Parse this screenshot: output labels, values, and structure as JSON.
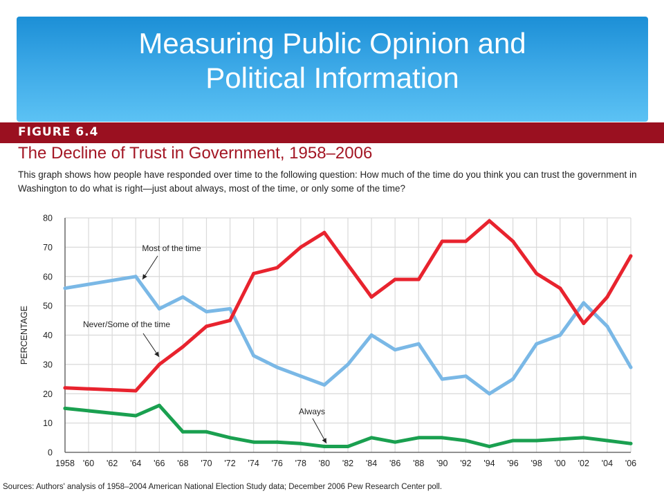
{
  "slide": {
    "title_line1": "Measuring Public Opinion and",
    "title_line2": "Political Information"
  },
  "figure": {
    "label": "FIGURE 6.4",
    "title": "The Decline of Trust in Government, 1958–2006",
    "description": "This graph shows how people have responded over time to the following question: How much of the time do you think you can trust the government in Washington to do what is right—just about always, most of the time, or only some of the time?",
    "source": "Sources: Authors' analysis of 1958–2004 American National Election Study data; December 2006 Pew Research Center poll."
  },
  "colors": {
    "banner_top": "#1c8fd6",
    "banner_bottom": "#5cc2f4",
    "figure_bar": "#9a1020",
    "figure_title": "#a31624",
    "most": "#7ab8e6",
    "never_some": "#e8232e",
    "always": "#1aa050",
    "grid": "#d9d9d9"
  },
  "chart_data": {
    "type": "line",
    "categories": [
      "1958",
      "'60",
      "'62",
      "'64",
      "'66",
      "'68",
      "'70",
      "'72",
      "'74",
      "'76",
      "'78",
      "'80",
      "'82",
      "'84",
      "'86",
      "'88",
      "'90",
      "'92",
      "'94",
      "'96",
      "'98",
      "'00",
      "'02",
      "'04",
      "'06"
    ],
    "ylabel": "PERCENTAGE",
    "ylim": [
      0,
      80
    ],
    "yticks": [
      0,
      10,
      20,
      30,
      40,
      50,
      60,
      70,
      80
    ],
    "grid": true,
    "series": [
      {
        "name": "Most of the time",
        "color": "#7ab8e6",
        "values": [
          56,
          null,
          null,
          60,
          49,
          53,
          48,
          49,
          33,
          29,
          26,
          23,
          30,
          40,
          35,
          37,
          25,
          26,
          20,
          25,
          37,
          40,
          51,
          43,
          29
        ]
      },
      {
        "name": "Never/Some of the time",
        "color": "#e8232e",
        "values": [
          22,
          null,
          null,
          21,
          30,
          36,
          43,
          45,
          61,
          63,
          70,
          75,
          64,
          53,
          59,
          59,
          72,
          72,
          79,
          72,
          61,
          56,
          44,
          53,
          67
        ]
      },
      {
        "name": "Always",
        "color": "#1aa050",
        "values": [
          15,
          null,
          null,
          12.5,
          16,
          7,
          7,
          5,
          3.5,
          3.5,
          3,
          2,
          2,
          5,
          3.5,
          5,
          5,
          4,
          2,
          4,
          4,
          4.5,
          5,
          4,
          3
        ]
      }
    ],
    "annotations": [
      {
        "text": "Most of the time",
        "series": 0
      },
      {
        "text": "Never/Some of the time",
        "series": 1
      },
      {
        "text": "Always",
        "series": 2
      }
    ]
  }
}
